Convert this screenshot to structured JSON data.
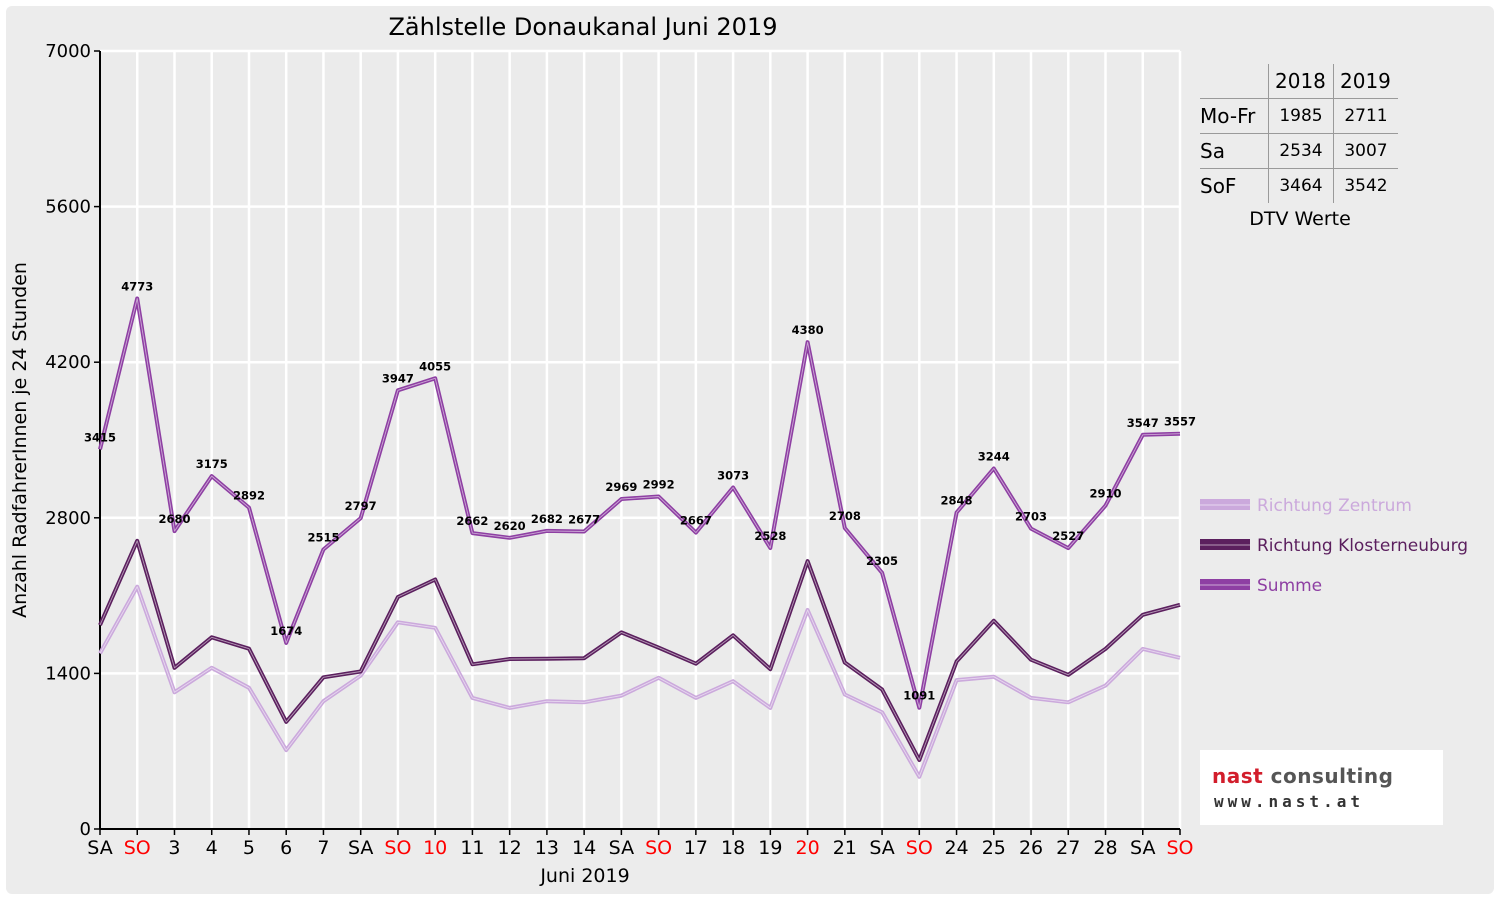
{
  "chart_data": {
    "type": "line",
    "title": "Zählstelle Donaukanal Juni 2019",
    "ylabel": "Anzahl RadfahrerInnen je 24 Stunden",
    "xlabel": "Juni 2019",
    "ylim": [
      0,
      7000
    ],
    "yticks": [
      "0",
      "1400",
      "2800",
      "4200",
      "5600",
      "7000"
    ],
    "ytick_values": [
      0,
      1400,
      2800,
      4200,
      5600,
      7000
    ],
    "grid": true,
    "legend_position": "right",
    "categories": [
      "SA",
      "SO",
      "3",
      "4",
      "5",
      "6",
      "7",
      "SA",
      "SO",
      "10",
      "11",
      "12",
      "13",
      "14",
      "SA",
      "SO",
      "17",
      "18",
      "19",
      "20",
      "21",
      "SA",
      "SO",
      "24",
      "25",
      "26",
      "27",
      "28",
      "SA",
      "SO"
    ],
    "highlight_categories": [
      1,
      8,
      9,
      15,
      19,
      22,
      29
    ],
    "series": [
      {
        "name": "Richtung Zentrum",
        "color": "#cba9dc",
        "values": [
          1580,
          2180,
          1230,
          1450,
          1270,
          710,
          1150,
          1380,
          1860,
          1810,
          1180,
          1090,
          1150,
          1140,
          1200,
          1360,
          1180,
          1330,
          1090,
          1970,
          1210,
          1050,
          470,
          1340,
          1370,
          1180,
          1140,
          1290,
          1620,
          1540
        ]
      },
      {
        "name": "Richtung Klosterneuburg",
        "color": "#5b1f5e",
        "values": [
          1835,
          2593,
          1450,
          1725,
          1622,
          964,
          1365,
          1417,
          2087,
          2245,
          1482,
          1530,
          1532,
          1537,
          1769,
          1632,
          1487,
          1743,
          1438,
          2410,
          1498,
          1255,
          621,
          1508,
          1874,
          1523,
          1387,
          1620,
          1927,
          2017
        ]
      },
      {
        "name": "Summe",
        "color": "#8e3fa3",
        "values": [
          3415,
          4773,
          2680,
          3175,
          2892,
          1674,
          2515,
          2797,
          3947,
          4055,
          2662,
          2620,
          2682,
          2677,
          2969,
          2992,
          2667,
          3073,
          2528,
          4380,
          2708,
          2305,
          1091,
          2848,
          3244,
          2703,
          2527,
          2910,
          3547,
          3557
        ],
        "labels": [
          "3415",
          "4773",
          "2680",
          "3175",
          "2892",
          "1674",
          "2515",
          "2797",
          "3947",
          "4055",
          "2662",
          "2620",
          "2682",
          "2677",
          "2969",
          "2992",
          "2667",
          "3073",
          "2528",
          "4380",
          "2708",
          "2305",
          "1091",
          "2848",
          "3244",
          "2703",
          "2527",
          "2910",
          "3547",
          "3557"
        ]
      }
    ]
  },
  "dtv_table": {
    "headers": [
      "",
      "2018",
      "2019"
    ],
    "rows": [
      {
        "label": "Mo-Fr",
        "v2018": "1985",
        "v2019": "2711"
      },
      {
        "label": "Sa",
        "v2018": "2534",
        "v2019": "3007"
      },
      {
        "label": "SoF",
        "v2018": "3464",
        "v2019": "3542"
      }
    ],
    "caption": "DTV Werte"
  },
  "logo": {
    "name_part1": "nast",
    "name_part2": " consulting",
    "url": "www.nast.at"
  },
  "colors": {
    "highlight_tick": "#ff0000",
    "normal_tick": "#000000",
    "grid": "#ffffff",
    "background": "#ececec"
  }
}
